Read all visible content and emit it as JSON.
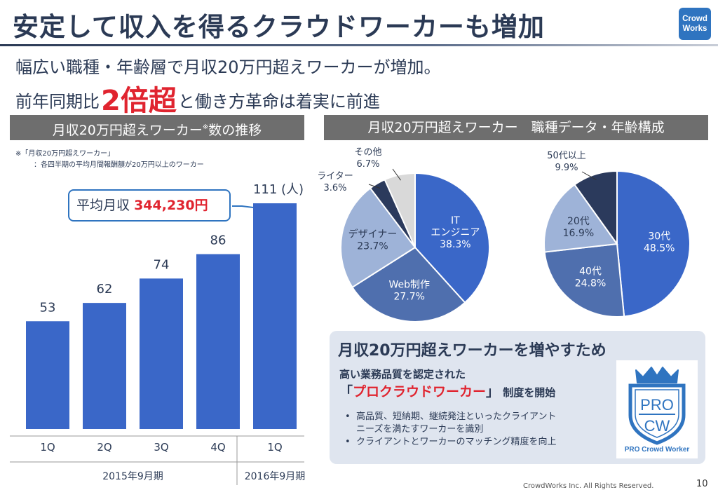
{
  "slide": {
    "title": "安定して収入を得るクラウドワーカーも増加",
    "subtitle": "幅広い職種・年齢層で月収20万円超えワーカーが増加。",
    "headline_pre": "前年同期比",
    "headline_emph": "2倍超",
    "headline_post": "と働き方革命は着実に前進",
    "logo_line1": "Crowd",
    "logo_line2": "Works",
    "copyright": "CrowdWorks Inc. All Rights Reserved.",
    "page_number": "10"
  },
  "left_panel": {
    "header": "月収20万円超えワーカー",
    "header_mark": "※",
    "header_tail": "数の推移",
    "note_line1": "※「月収20万円超えワーカー」",
    "note_line2": "：各四半期の平均月間報酬額が20万円以上のワーカー",
    "avg_label": "平均月収",
    "avg_value": "344,230円"
  },
  "right_panel": {
    "header": "月収20万円超えワーカー　職種データ・年齢構成"
  },
  "chart_data": [
    {
      "type": "bar",
      "categories": [
        "1Q",
        "2Q",
        "3Q",
        "4Q",
        "1Q"
      ],
      "values": [
        53,
        62,
        74,
        86,
        111
      ],
      "value_labels": [
        "53",
        "62",
        "74",
        "86",
        "111"
      ],
      "unit_label": "(人)",
      "groups": [
        {
          "label": "2015年9月期",
          "categories": 4
        },
        {
          "label": "2016年9月期",
          "categories": 1
        }
      ],
      "ylim": [
        0,
        111
      ],
      "color": "#3a67c8",
      "grid": false
    },
    {
      "type": "pie",
      "slices": [
        {
          "label": "IT\nエンジニア",
          "value": 38.3,
          "value_label": "38.3%",
          "color": "#3a67c8",
          "label_inside": true
        },
        {
          "label": "Web制作",
          "value": 27.7,
          "value_label": "27.7%",
          "color": "#4f6fae",
          "label_inside": true
        },
        {
          "label": "デザイナー",
          "value": 23.7,
          "value_label": "23.7%",
          "color": "#9eb3d8",
          "label_inside": true
        },
        {
          "label": "ライター",
          "value": 3.6,
          "value_label": "3.6%",
          "color": "#2b3a5c",
          "label_inside": false
        },
        {
          "label": "その他",
          "value": 6.7,
          "value_label": "6.7%",
          "color": "#d9d9d9",
          "label_inside": false
        }
      ]
    },
    {
      "type": "pie",
      "slices": [
        {
          "label": "30代",
          "value": 48.5,
          "value_label": "48.5%",
          "color": "#3a67c8",
          "label_inside": true
        },
        {
          "label": "40代",
          "value": 24.8,
          "value_label": "24.8%",
          "color": "#4f6fae",
          "label_inside": true
        },
        {
          "label": "20代",
          "value": 16.9,
          "value_label": "16.9%",
          "color": "#9eb3d8",
          "label_inside": true
        },
        {
          "label": "50代以上",
          "value": 9.9,
          "value_label": "9.9%",
          "color": "#2b3a5c",
          "label_inside": false
        }
      ]
    }
  ],
  "promo": {
    "title": "月収20万円超えワーカーを増やすため",
    "line1": "高い業務品質を認定された",
    "open_quote": "「",
    "program_name": "プロクラウドワーカー",
    "close_quote": "」",
    "line2_tail": " 制度を開始",
    "bullets": [
      "高品質、短納期、継続発注といったクライアント\nニーズを満たすワーカーを識別",
      "クライアントとワーカーのマッチング精度を向上"
    ],
    "badge_top": "PRO",
    "badge_bottom": "CW",
    "badge_caption": "PRO Crowd Worker"
  }
}
